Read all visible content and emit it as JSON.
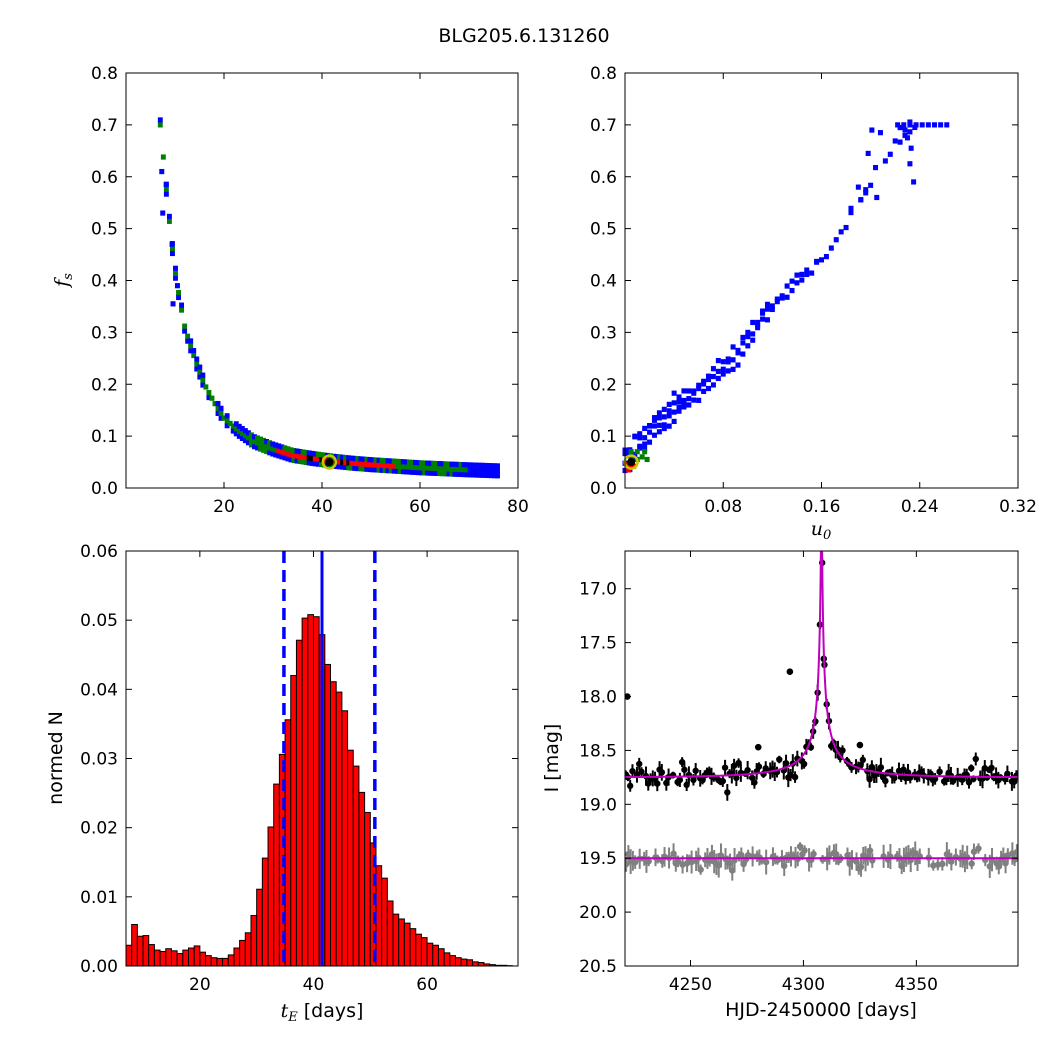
{
  "figure_title": "BLG205.6.131260",
  "colors": {
    "blue": "#0000ff",
    "green": "#008000",
    "red": "#ff0000",
    "black": "#000000",
    "magenta": "#bf00bf",
    "gray": "#808080",
    "marker_ring": "#c8c800"
  },
  "chart_data": [
    {
      "id": "fs_vs_tE",
      "type": "heatmap",
      "xlabel": "",
      "ylabel": "f_s",
      "xlim": [
        0,
        80
      ],
      "ylim": [
        0,
        0.8
      ],
      "xticks": [
        20,
        40,
        60,
        80
      ],
      "xtick_labels": [
        "20",
        "40",
        "60",
        "80"
      ],
      "yticks": [
        0,
        0.1,
        0.2,
        0.3,
        0.4,
        0.5,
        0.6,
        0.7,
        0.8
      ],
      "ytick_labels": [
        "0.0",
        "0.1",
        "0.2",
        "0.3",
        "0.4",
        "0.5",
        "0.6",
        "0.7",
        "0.8"
      ],
      "density_levels": [
        "blue",
        "green",
        "red",
        "black"
      ],
      "curve": {
        "description_points_tE": [
          7,
          8,
          9,
          10,
          11,
          12,
          14,
          16,
          18,
          20,
          23,
          26,
          30,
          34,
          38,
          42,
          46,
          50,
          55,
          60,
          65,
          70,
          76
        ],
        "fs": [
          0.7,
          0.6,
          0.5,
          0.42,
          0.36,
          0.31,
          0.25,
          0.2,
          0.165,
          0.135,
          0.11,
          0.09,
          0.075,
          0.063,
          0.057,
          0.052,
          0.048,
          0.045,
          0.042,
          0.039,
          0.037,
          0.035,
          0.033
        ]
      },
      "best_fit": {
        "tE": 41.5,
        "fs": 0.05
      }
    },
    {
      "id": "fs_vs_u0",
      "type": "heatmap",
      "xlabel": "u_0",
      "ylabel": "",
      "xlim": [
        0,
        0.32
      ],
      "ylim": [
        0,
        0.8
      ],
      "xticks": [
        0.08,
        0.16,
        0.24,
        0.32
      ],
      "xtick_labels": [
        "0.08",
        "0.16",
        "0.24",
        "0.32"
      ],
      "yticks": [
        0,
        0.1,
        0.2,
        0.3,
        0.4,
        0.5,
        0.6,
        0.7,
        0.8
      ],
      "ytick_labels": [
        "0.0",
        "0.1",
        "0.2",
        "0.3",
        "0.4",
        "0.5",
        "0.6",
        "0.7",
        "0.8"
      ],
      "curve": {
        "u0": [
          0.0,
          0.01,
          0.02,
          0.03,
          0.04,
          0.05,
          0.06,
          0.07,
          0.08,
          0.09,
          0.1,
          0.11,
          0.12,
          0.13,
          0.14,
          0.15,
          0.16,
          0.17,
          0.18,
          0.19,
          0.2,
          0.21,
          0.22,
          0.23,
          0.24
        ],
        "fs": [
          0.05,
          0.08,
          0.11,
          0.13,
          0.15,
          0.17,
          0.19,
          0.21,
          0.23,
          0.25,
          0.29,
          0.32,
          0.35,
          0.37,
          0.4,
          0.42,
          0.44,
          0.47,
          0.51,
          0.55,
          0.59,
          0.63,
          0.67,
          0.69,
          0.7
        ]
      },
      "best_fit": {
        "u0": 0.005,
        "fs": 0.05
      }
    },
    {
      "id": "tE_histogram",
      "type": "bar",
      "xlabel": "t_E [days]",
      "ylabel": "normed N",
      "xlim": [
        7,
        76
      ],
      "ylim": [
        0,
        0.06
      ],
      "xticks": [
        20,
        40,
        60
      ],
      "xtick_labels": [
        "20",
        "40",
        "60"
      ],
      "yticks": [
        0,
        0.01,
        0.02,
        0.03,
        0.04,
        0.05,
        0.06
      ],
      "ytick_labels": [
        "0.00",
        "0.01",
        "0.02",
        "0.03",
        "0.04",
        "0.05",
        "0.06"
      ],
      "bin_width": 1,
      "bin_start": 7,
      "values": [
        0.003,
        0.006,
        0.0043,
        0.0044,
        0.0031,
        0.0023,
        0.0021,
        0.0025,
        0.0022,
        0.0018,
        0.0023,
        0.0026,
        0.0029,
        0.002,
        0.0015,
        0.0012,
        0.0011,
        0.0011,
        0.0016,
        0.0026,
        0.0037,
        0.0048,
        0.0073,
        0.0111,
        0.0156,
        0.0201,
        0.0263,
        0.0306,
        0.0356,
        0.042,
        0.0471,
        0.0503,
        0.0508,
        0.0505,
        0.0479,
        0.0436,
        0.0411,
        0.0396,
        0.0369,
        0.0312,
        0.0289,
        0.0251,
        0.0222,
        0.0178,
        0.0145,
        0.0127,
        0.0094,
        0.0075,
        0.0068,
        0.0062,
        0.0054,
        0.0046,
        0.0041,
        0.0033,
        0.003,
        0.0025,
        0.0019,
        0.0015,
        0.0012,
        0.001,
        0.0009,
        0.0006,
        0.0005,
        0.0003,
        0.0002,
        0.0001,
        0.0001,
        5e-05
      ],
      "vlines": {
        "median": 41.5,
        "lower": 34.8,
        "upper": 50.8
      }
    },
    {
      "id": "light_curve",
      "type": "scatter",
      "xlabel": "HJD-2450000 [days]",
      "ylabel": "I [mag]",
      "xlim": [
        4221,
        4395
      ],
      "ylim": [
        20.5,
        16.65
      ],
      "xticks": [
        4250,
        4300,
        4350
      ],
      "xtick_labels": [
        "4250",
        "4300",
        "4350"
      ],
      "yticks": [
        17.0,
        17.5,
        18.0,
        18.5,
        19.0,
        19.5,
        20.0,
        20.5
      ],
      "ytick_labels": [
        "17.0",
        "17.5",
        "18.0",
        "18.5",
        "19.0",
        "19.5",
        "20.0",
        "20.5"
      ],
      "model": {
        "t0": 4308,
        "baseline": 18.75,
        "peak": 16.65,
        "residual_baseline": 19.5
      },
      "data_series": {
        "name": "",
        "mean_mag": 18.7,
        "scatter": 0.06
      },
      "residual_series": {
        "name": "",
        "mean_mag": 19.5,
        "scatter": 0.05
      }
    }
  ]
}
